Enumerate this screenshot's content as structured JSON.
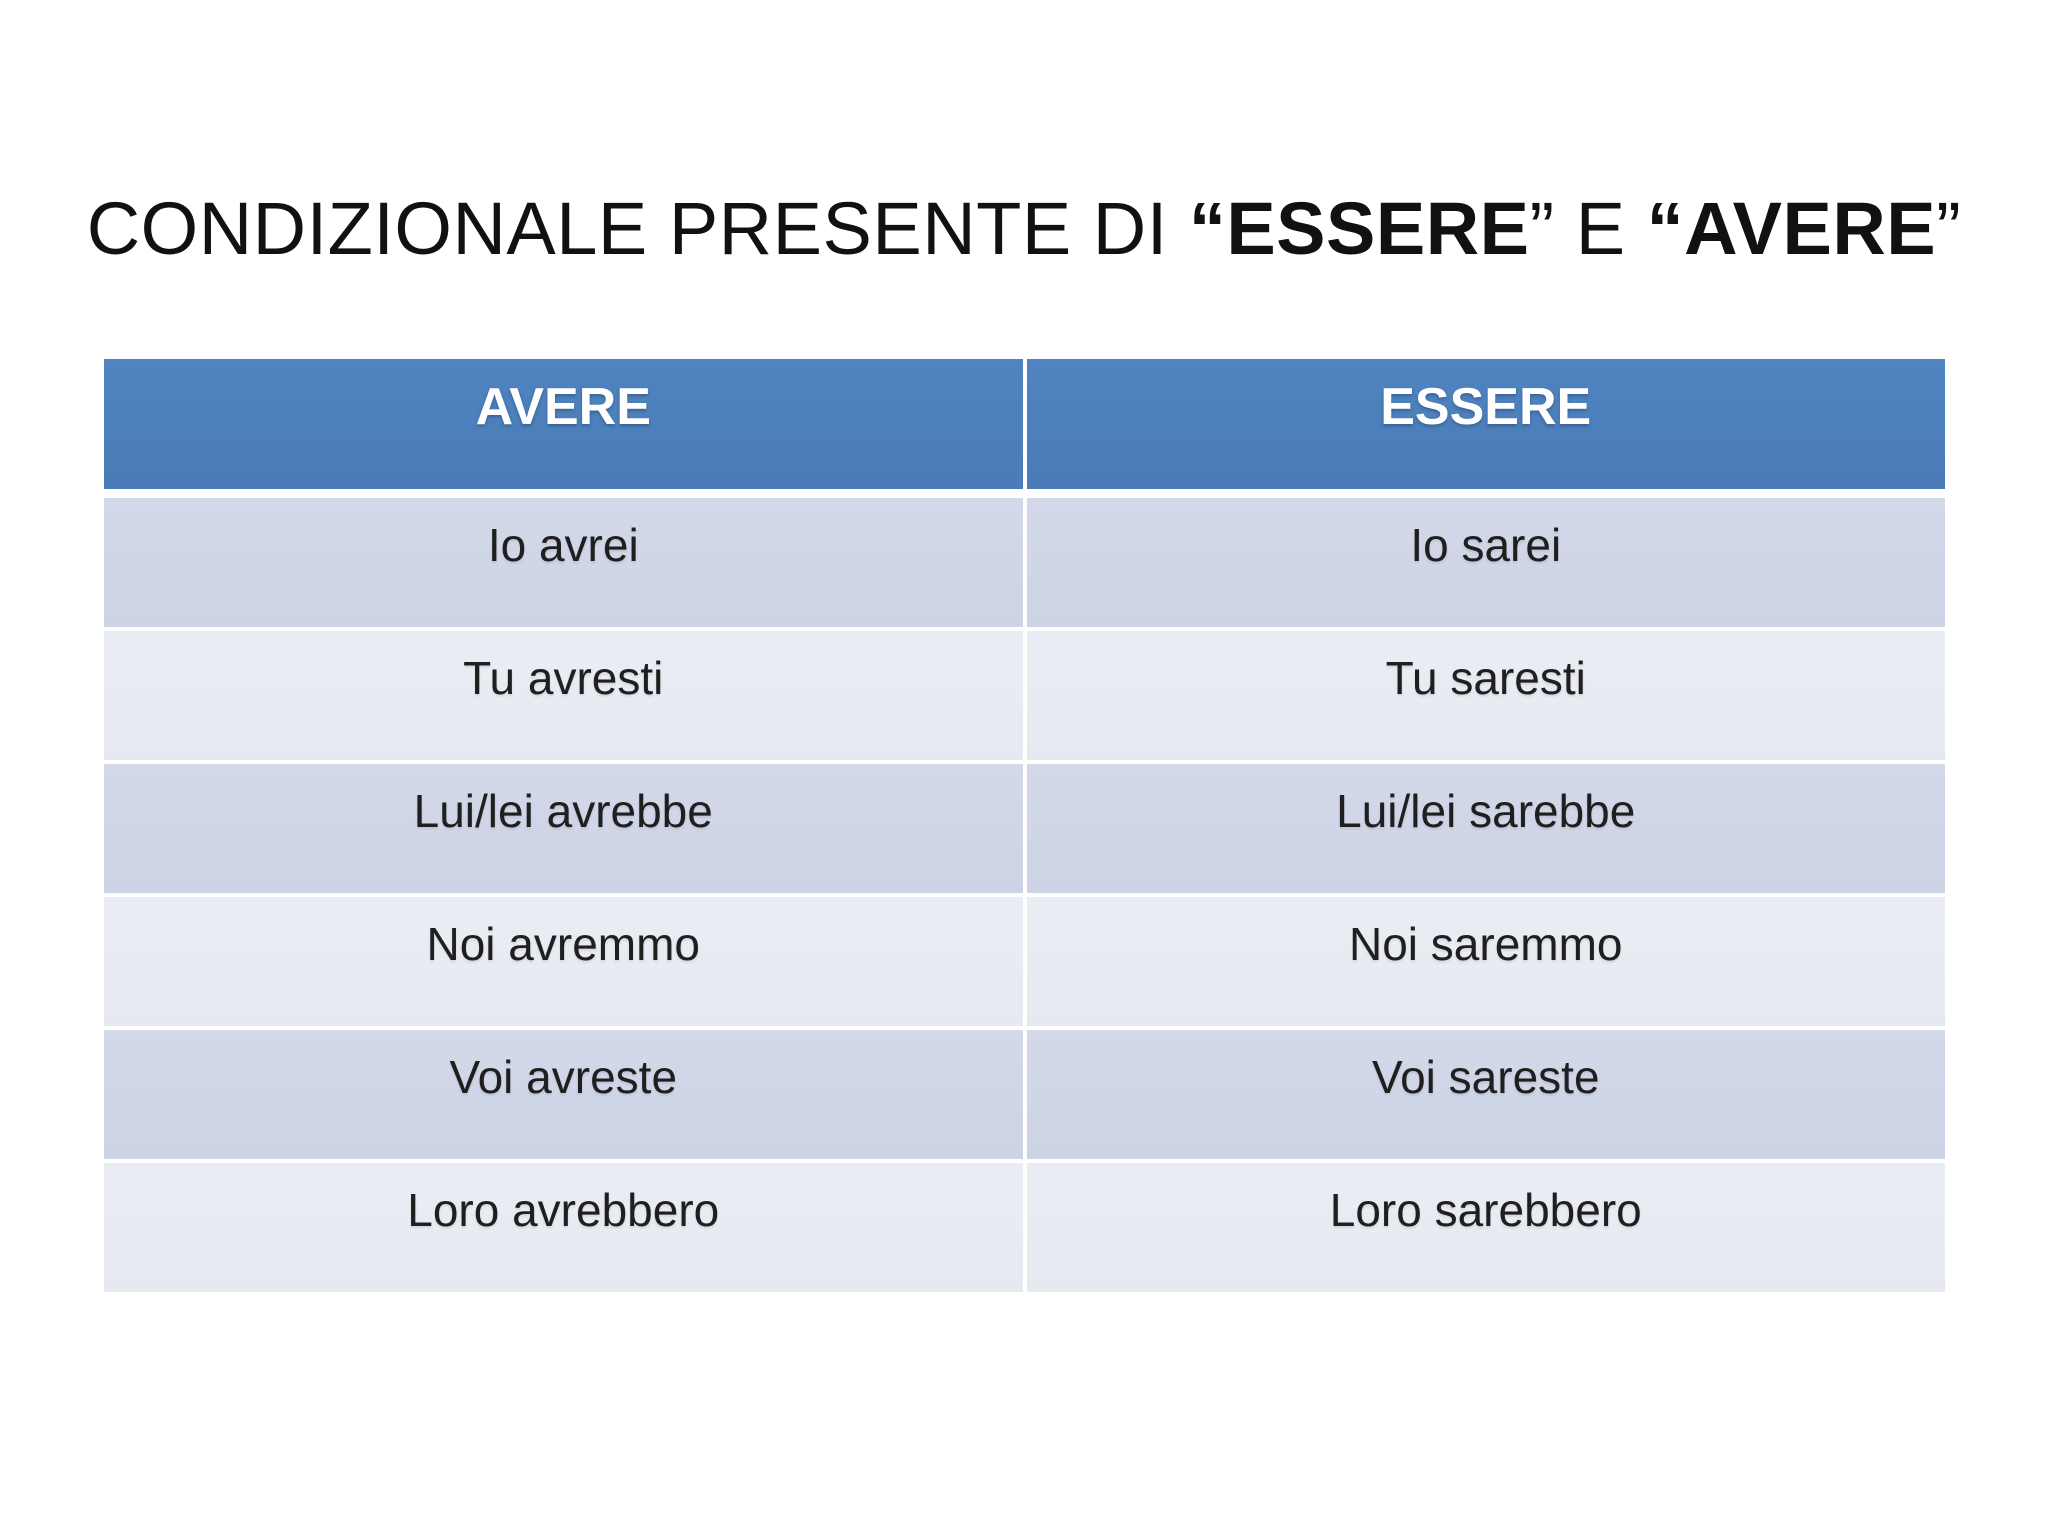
{
  "title": {
    "segments": [
      {
        "text": "CONDIZIONALE PRESENTE DI "
      },
      {
        "text": "“ESSERE"
      },
      {
        "text": "” E "
      },
      {
        "text": "“AVERE"
      },
      {
        "text": "”"
      }
    ]
  },
  "table": {
    "columns": [
      "AVERE",
      "ESSERE"
    ],
    "rows": [
      [
        "Io avrei",
        "Io sarei"
      ],
      [
        "Tu avresti",
        "Tu saresti"
      ],
      [
        "Lui/lei avrebbe",
        "Lui/lei sarebbe"
      ],
      [
        "Noi avremmo",
        "Noi saremmo"
      ],
      [
        "Voi avreste",
        "Voi sareste"
      ],
      [
        "Loro avrebbero",
        "Loro sarebbero"
      ]
    ]
  },
  "colors": {
    "header_bg": "#4E81BC",
    "band_dark": "#CED5E6",
    "band_light": "#E9EAF1",
    "header_text": "#FFFFFF",
    "body_text": "#1F1F1F",
    "background": "#FFFFFF"
  }
}
